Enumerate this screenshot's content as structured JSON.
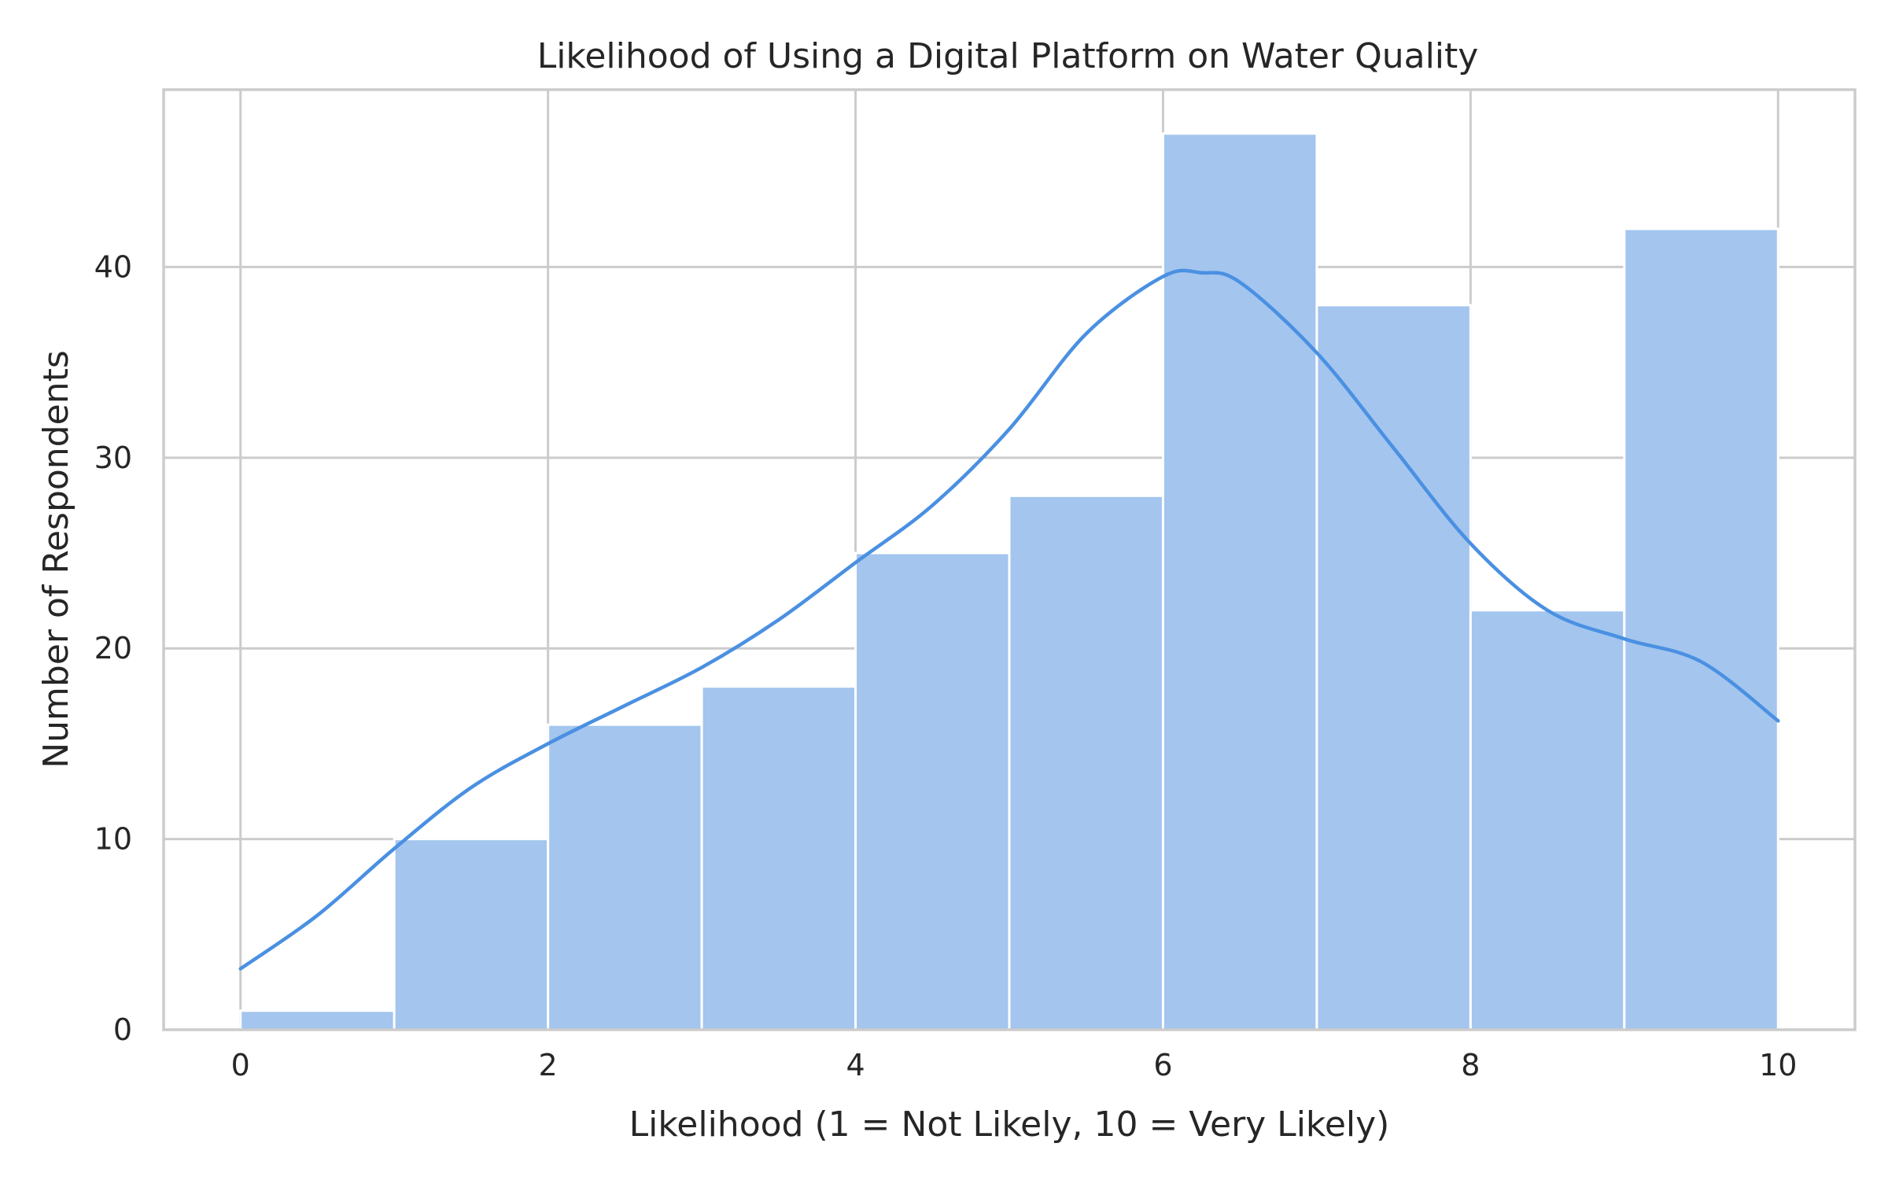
{
  "chart_data": {
    "type": "bar",
    "title": "Likelihood of Using a Digital Platform on Water Quality",
    "xlabel": "Likelihood (1 = Not Likely, 10 = Very Likely)",
    "ylabel": "Number of Respondents",
    "xlim": [
      -0.5,
      10.5
    ],
    "ylim": [
      0,
      49.3
    ],
    "xticks": [
      0,
      2,
      4,
      6,
      8,
      10
    ],
    "yticks": [
      0,
      10,
      20,
      30,
      40
    ],
    "grid": true,
    "bins": [
      {
        "start": 0,
        "end": 1,
        "count": 1
      },
      {
        "start": 1,
        "end": 2,
        "count": 10
      },
      {
        "start": 2,
        "end": 3,
        "count": 16
      },
      {
        "start": 3,
        "end": 4,
        "count": 18
      },
      {
        "start": 4,
        "end": 5,
        "count": 25
      },
      {
        "start": 5,
        "end": 6,
        "count": 28
      },
      {
        "start": 6,
        "end": 7,
        "count": 47
      },
      {
        "start": 7,
        "end": 8,
        "count": 38
      },
      {
        "start": 8,
        "end": 9,
        "count": 22
      },
      {
        "start": 9,
        "end": 10,
        "count": 42
      }
    ],
    "kde": {
      "x": [
        0,
        0.5,
        1,
        1.5,
        2,
        2.5,
        3,
        3.5,
        4,
        4.5,
        5,
        5.5,
        6,
        6.25,
        6.5,
        7,
        7.5,
        8,
        8.5,
        9,
        9.5,
        10
      ],
      "y": [
        3.2,
        6.0,
        9.5,
        12.7,
        15.0,
        17.0,
        19.0,
        21.5,
        24.5,
        27.5,
        31.5,
        36.5,
        39.5,
        39.7,
        39.2,
        35.5,
        30.5,
        25.5,
        22.0,
        20.5,
        19.3,
        16.2
      ]
    },
    "colors": {
      "bar_fill": "#a3c5ee",
      "kde_line": "#4a90e2",
      "grid": "#cccccc"
    }
  }
}
